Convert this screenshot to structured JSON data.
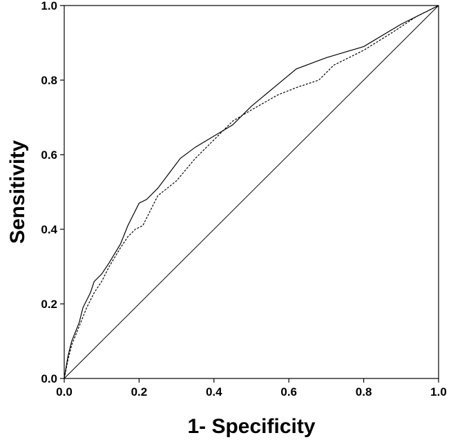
{
  "chart_data": {
    "type": "line",
    "title": "",
    "xlabel": "1- Specificity",
    "ylabel": "Sensitivity",
    "xlim": [
      0.0,
      1.0
    ],
    "ylim": [
      0.0,
      1.0
    ],
    "x_ticks": [
      "0.0",
      "0.2",
      "0.4",
      "0.6",
      "0.8",
      "1.0"
    ],
    "y_ticks": [
      "0.0",
      "0.2",
      "0.4",
      "0.6",
      "0.8",
      "1.0"
    ],
    "grid": false,
    "legend": "none",
    "series": [
      {
        "style": "solid",
        "color": "#000000",
        "points": [
          [
            0,
            0
          ],
          [
            0.01,
            0.06
          ],
          [
            0.02,
            0.1
          ],
          [
            0.04,
            0.15
          ],
          [
            0.05,
            0.19
          ],
          [
            0.07,
            0.23
          ],
          [
            0.08,
            0.26
          ],
          [
            0.1,
            0.28
          ],
          [
            0.12,
            0.31
          ],
          [
            0.15,
            0.36
          ],
          [
            0.17,
            0.41
          ],
          [
            0.2,
            0.47
          ],
          [
            0.22,
            0.48
          ],
          [
            0.25,
            0.51
          ],
          [
            0.28,
            0.55
          ],
          [
            0.31,
            0.59
          ],
          [
            0.35,
            0.62
          ],
          [
            0.4,
            0.65
          ],
          [
            0.45,
            0.68
          ],
          [
            0.5,
            0.73
          ],
          [
            0.56,
            0.78
          ],
          [
            0.62,
            0.83
          ],
          [
            0.7,
            0.86
          ],
          [
            0.8,
            0.89
          ],
          [
            0.9,
            0.95
          ],
          [
            1,
            1
          ]
        ]
      },
      {
        "style": "dashed",
        "color": "#000000",
        "points": [
          [
            0,
            0
          ],
          [
            0.01,
            0.05
          ],
          [
            0.02,
            0.09
          ],
          [
            0.04,
            0.14
          ],
          [
            0.06,
            0.19
          ],
          [
            0.08,
            0.23
          ],
          [
            0.1,
            0.26
          ],
          [
            0.12,
            0.3
          ],
          [
            0.15,
            0.35
          ],
          [
            0.17,
            0.38
          ],
          [
            0.19,
            0.4
          ],
          [
            0.21,
            0.41
          ],
          [
            0.23,
            0.45
          ],
          [
            0.25,
            0.49
          ],
          [
            0.3,
            0.53
          ],
          [
            0.35,
            0.59
          ],
          [
            0.4,
            0.64
          ],
          [
            0.45,
            0.69
          ],
          [
            0.5,
            0.72
          ],
          [
            0.57,
            0.76
          ],
          [
            0.62,
            0.78
          ],
          [
            0.68,
            0.8
          ],
          [
            0.72,
            0.84
          ],
          [
            0.8,
            0.88
          ],
          [
            0.88,
            0.93
          ],
          [
            0.94,
            0.97
          ],
          [
            1,
            1
          ]
        ]
      },
      {
        "name": "reference",
        "style": "solid-thin",
        "color": "#000000",
        "points": [
          [
            0,
            0
          ],
          [
            1,
            1
          ]
        ]
      }
    ]
  }
}
